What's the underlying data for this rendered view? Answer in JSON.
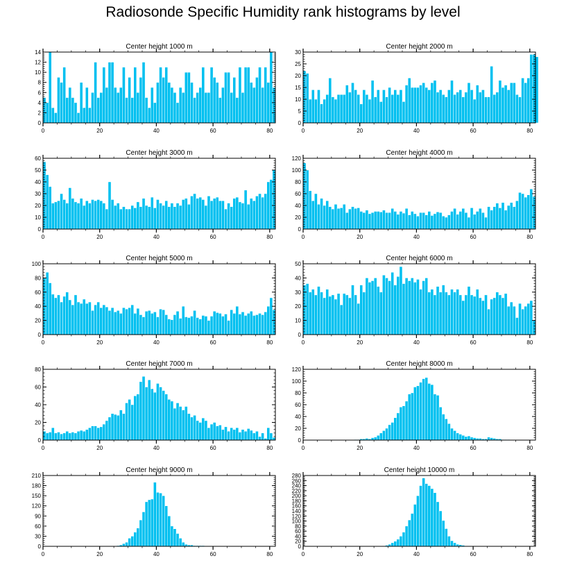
{
  "page_title": "Radiosonde Specific Humidity rank histograms by level",
  "chart_data": [
    {
      "type": "bar",
      "title": "Center height 1000 m",
      "xlim": [
        0,
        82
      ],
      "ylim": [
        0,
        14
      ],
      "xticks": [
        0,
        20,
        40,
        60,
        80
      ],
      "yticks": [
        0,
        2,
        4,
        6,
        8,
        10,
        12,
        14
      ],
      "values": [
        5,
        4,
        14,
        3,
        2,
        9,
        8,
        11,
        5,
        7,
        5,
        4,
        2,
        8,
        3,
        7,
        3,
        6,
        12,
        5,
        6,
        11,
        7,
        12,
        12,
        7,
        6,
        7,
        11,
        5,
        9,
        5,
        11,
        6,
        9,
        12,
        5,
        3,
        7,
        4,
        8,
        11,
        9,
        11,
        8,
        7,
        6,
        4,
        7,
        6,
        10,
        10,
        8,
        5,
        6,
        7,
        11,
        6,
        6,
        11,
        9,
        8,
        5,
        7,
        10,
        10,
        6,
        9,
        5,
        11,
        6,
        11,
        11,
        8,
        7,
        9,
        11,
        7,
        11,
        8,
        14,
        7
      ]
    },
    {
      "type": "bar",
      "title": "Center height 2000 m",
      "xlim": [
        0,
        82
      ],
      "ylim": [
        0,
        30
      ],
      "xticks": [
        0,
        20,
        40,
        60,
        80
      ],
      "yticks": [
        0,
        5,
        10,
        15,
        20,
        25,
        30
      ],
      "values": [
        22,
        21,
        10,
        14,
        10,
        14,
        8,
        10,
        12,
        19,
        11,
        10,
        12,
        12,
        12,
        16,
        13,
        17,
        14,
        12,
        8,
        14,
        12,
        10,
        18,
        11,
        14,
        9,
        14,
        11,
        15,
        12,
        14,
        12,
        14,
        9,
        16,
        19,
        15,
        15,
        15,
        16,
        17,
        15,
        14,
        17,
        18,
        13,
        14,
        12,
        11,
        14,
        18,
        12,
        13,
        14,
        11,
        13,
        17,
        14,
        10,
        16,
        13,
        14,
        11,
        11,
        24,
        12,
        13,
        18,
        15,
        16,
        14,
        17,
        17,
        12,
        11,
        19,
        17,
        19,
        29,
        29,
        28
      ]
    },
    {
      "type": "bar",
      "title": "Center height 3000 m",
      "xlim": [
        0,
        82
      ],
      "ylim": [
        0,
        60
      ],
      "xticks": [
        0,
        20,
        40,
        60,
        80
      ],
      "yticks": [
        0,
        10,
        20,
        30,
        40,
        50,
        60
      ],
      "values": [
        57,
        46,
        36,
        22,
        23,
        24,
        30,
        25,
        22,
        35,
        26,
        23,
        22,
        26,
        20,
        24,
        22,
        25,
        24,
        25,
        24,
        22,
        17,
        40,
        25,
        20,
        22,
        17,
        19,
        17,
        17,
        20,
        18,
        23,
        19,
        26,
        20,
        19,
        27,
        18,
        25,
        22,
        20,
        24,
        19,
        22,
        19,
        22,
        20,
        25,
        26,
        21,
        28,
        30,
        26,
        27,
        25,
        20,
        28,
        24,
        26,
        27,
        24,
        24,
        17,
        22,
        19,
        26,
        27,
        23,
        22,
        33,
        21,
        26,
        24,
        28,
        30,
        27,
        30,
        40,
        42,
        50
      ]
    },
    {
      "type": "bar",
      "title": "Center height 4000 m",
      "xlim": [
        0,
        82
      ],
      "ylim": [
        0,
        120
      ],
      "xticks": [
        0,
        20,
        40,
        60,
        80
      ],
      "yticks": [
        0,
        20,
        40,
        60,
        80,
        100,
        120
      ],
      "values": [
        112,
        100,
        65,
        48,
        60,
        42,
        52,
        40,
        48,
        38,
        34,
        42,
        35,
        36,
        42,
        28,
        34,
        38,
        35,
        36,
        30,
        28,
        32,
        26,
        28,
        30,
        30,
        29,
        32,
        28,
        28,
        35,
        30,
        25,
        30,
        27,
        35,
        24,
        30,
        26,
        22,
        28,
        28,
        24,
        30,
        23,
        26,
        29,
        28,
        22,
        20,
        24,
        30,
        35,
        25,
        30,
        35,
        28,
        20,
        36,
        25,
        30,
        35,
        28,
        20,
        38,
        32,
        38,
        44,
        36,
        45,
        32,
        40,
        45,
        38,
        48,
        62,
        60,
        54,
        58,
        68,
        55
      ]
    },
    {
      "type": "bar",
      "title": "Center height 5000 m",
      "xlim": [
        0,
        82
      ],
      "ylim": [
        0,
        100
      ],
      "xticks": [
        0,
        20,
        40,
        60,
        80
      ],
      "yticks": [
        0,
        20,
        40,
        60,
        80,
        100
      ],
      "values": [
        80,
        88,
        73,
        57,
        52,
        56,
        46,
        54,
        60,
        49,
        42,
        56,
        46,
        44,
        50,
        44,
        46,
        34,
        42,
        46,
        38,
        42,
        39,
        34,
        38,
        32,
        34,
        30,
        38,
        36,
        38,
        42,
        30,
        37,
        28,
        25,
        33,
        34,
        30,
        32,
        25,
        36,
        35,
        28,
        22,
        21,
        28,
        33,
        23,
        40,
        25,
        24,
        26,
        34,
        24,
        22,
        27,
        26,
        20,
        26,
        33,
        31,
        30,
        26,
        29,
        20,
        35,
        30,
        40,
        29,
        32,
        27,
        30,
        33,
        27,
        28,
        30,
        28,
        32,
        40,
        52,
        35
      ]
    },
    {
      "type": "bar",
      "title": "Center height 6000 m",
      "xlim": [
        0,
        82
      ],
      "ylim": [
        0,
        50
      ],
      "xticks": [
        0,
        20,
        40,
        60,
        80
      ],
      "yticks": [
        0,
        10,
        20,
        30,
        40,
        50
      ],
      "values": [
        35,
        36,
        30,
        32,
        28,
        34,
        30,
        26,
        32,
        27,
        28,
        25,
        29,
        21,
        29,
        28,
        26,
        35,
        28,
        22,
        35,
        30,
        40,
        37,
        38,
        40,
        34,
        30,
        42,
        40,
        38,
        44,
        35,
        41,
        48,
        36,
        40,
        38,
        40,
        37,
        39,
        32,
        38,
        40,
        30,
        32,
        28,
        34,
        30,
        35,
        30,
        28,
        32,
        30,
        32,
        28,
        24,
        28,
        34,
        28,
        27,
        32,
        26,
        24,
        28,
        18,
        25,
        26,
        30,
        28,
        26,
        29,
        20,
        23,
        20,
        12,
        22,
        18,
        20,
        22,
        24,
        10
      ]
    },
    {
      "type": "bar",
      "title": "Center height 7000 m",
      "xlim": [
        0,
        82
      ],
      "ylim": [
        0,
        80
      ],
      "xticks": [
        0,
        20,
        40,
        60,
        80
      ],
      "yticks": [
        0,
        20,
        40,
        60,
        80
      ],
      "values": [
        10,
        8,
        9,
        14,
        8,
        9,
        7,
        8,
        10,
        8,
        9,
        8,
        10,
        11,
        10,
        12,
        14,
        16,
        16,
        14,
        15,
        18,
        22,
        26,
        30,
        29,
        28,
        34,
        30,
        42,
        46,
        40,
        50,
        52,
        66,
        72,
        60,
        68,
        58,
        54,
        64,
        60,
        56,
        52,
        46,
        44,
        36,
        42,
        38,
        34,
        38,
        30,
        26,
        28,
        22,
        20,
        25,
        22,
        14,
        18,
        20,
        16,
        17,
        12,
        15,
        10,
        14,
        12,
        14,
        9,
        12,
        10,
        13,
        11,
        8,
        10,
        4,
        8,
        2,
        14,
        8,
        3
      ]
    },
    {
      "type": "bar",
      "title": "Center height 8000 m",
      "xlim": [
        0,
        82
      ],
      "ylim": [
        0,
        120
      ],
      "xticks": [
        0,
        20,
        40,
        60,
        80
      ],
      "yticks": [
        0,
        20,
        40,
        60,
        80,
        100,
        120
      ],
      "values": [
        0,
        0,
        0,
        0,
        0,
        0,
        0,
        0,
        0,
        0,
        0,
        0,
        0,
        0,
        0,
        0,
        0,
        0,
        1,
        1,
        2,
        2,
        3,
        2,
        4,
        5,
        8,
        12,
        16,
        20,
        26,
        30,
        38,
        46,
        56,
        58,
        66,
        78,
        80,
        90,
        92,
        98,
        104,
        106,
        96,
        94,
        78,
        76,
        56,
        44,
        36,
        28,
        20,
        16,
        12,
        10,
        8,
        6,
        7,
        5,
        4,
        3,
        3,
        2,
        2,
        5,
        4,
        3,
        2,
        2,
        1,
        1,
        1,
        0,
        0,
        0,
        0,
        0,
        0,
        0,
        0,
        0
      ]
    },
    {
      "type": "bar",
      "title": "Center height 9000 m",
      "xlim": [
        0,
        82
      ],
      "ylim": [
        0,
        210
      ],
      "xticks": [
        0,
        20,
        40,
        60,
        80
      ],
      "yticks": [
        0,
        30,
        60,
        90,
        120,
        150,
        180,
        210
      ],
      "values": [
        0,
        0,
        0,
        0,
        0,
        0,
        0,
        0,
        0,
        0,
        0,
        0,
        0,
        0,
        0,
        0,
        0,
        0,
        0,
        0,
        0,
        0,
        0,
        0,
        0,
        0,
        2,
        4,
        8,
        12,
        24,
        30,
        42,
        54,
        78,
        102,
        132,
        138,
        140,
        190,
        160,
        158,
        150,
        120,
        90,
        60,
        52,
        38,
        24,
        12,
        6,
        4,
        4,
        2,
        2,
        2,
        2,
        1,
        1,
        0,
        0,
        0,
        0,
        0,
        0,
        0,
        0,
        0,
        0,
        0,
        0,
        0,
        0,
        0,
        0,
        0,
        0,
        0,
        0,
        0,
        0,
        0
      ]
    },
    {
      "type": "bar",
      "title": "Center height 10000 m",
      "xlim": [
        0,
        82
      ],
      "ylim": [
        0,
        280
      ],
      "xticks": [
        0,
        20,
        40,
        60,
        80
      ],
      "yticks": [
        0,
        20,
        40,
        60,
        80,
        100,
        120,
        140,
        160,
        180,
        200,
        220,
        240,
        260,
        280
      ],
      "values": [
        0,
        0,
        0,
        0,
        0,
        0,
        0,
        0,
        0,
        0,
        0,
        0,
        0,
        0,
        0,
        0,
        0,
        0,
        0,
        0,
        0,
        0,
        0,
        0,
        0,
        0,
        0,
        0,
        2,
        4,
        8,
        14,
        20,
        28,
        40,
        56,
        80,
        104,
        130,
        166,
        200,
        240,
        270,
        248,
        240,
        228,
        212,
        176,
        140,
        102,
        70,
        40,
        22,
        14,
        8,
        6,
        4,
        2,
        2,
        1,
        0,
        0,
        0,
        0,
        0,
        0,
        0,
        0,
        0,
        0,
        0,
        0,
        0,
        0,
        0,
        0,
        0,
        0,
        0,
        0,
        0,
        0
      ]
    }
  ]
}
